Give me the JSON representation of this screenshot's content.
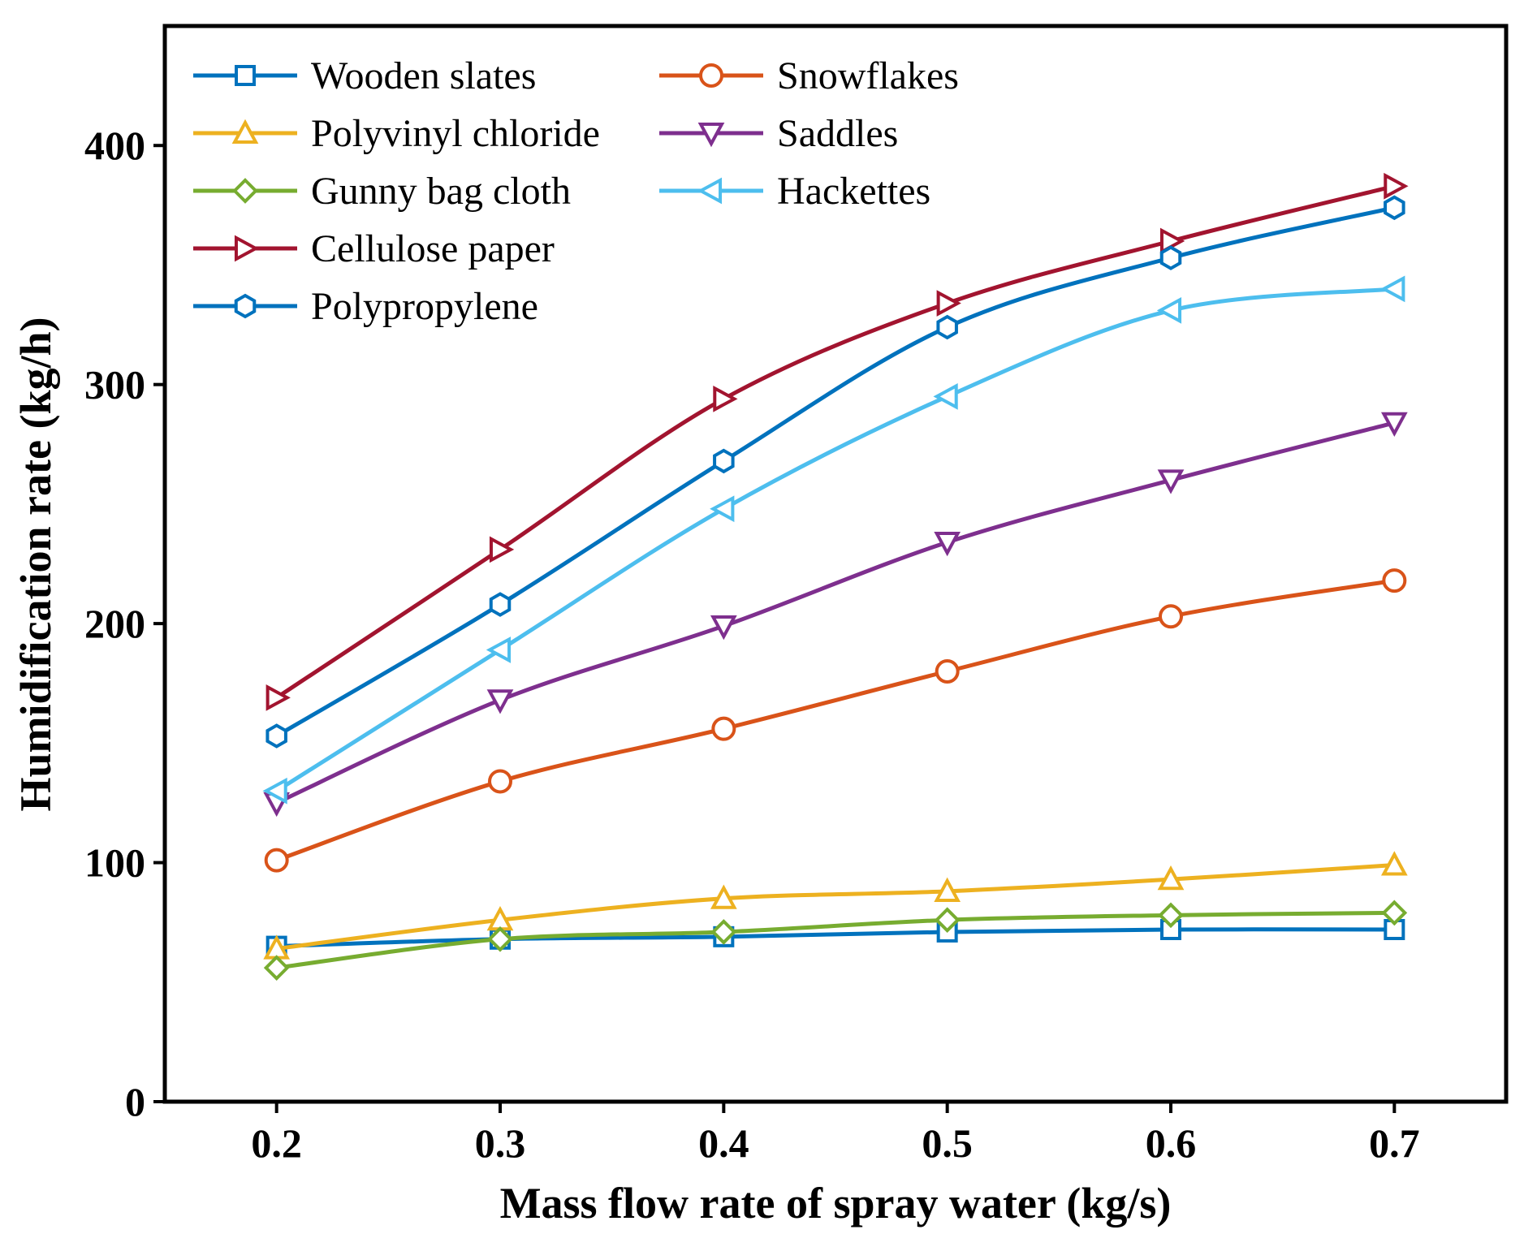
{
  "chart_data": {
    "type": "line",
    "title": "",
    "xlabel": "Mass flow rate of spray water (kg/s)",
    "ylabel": "Humidification rate (kg/h)",
    "xlim": [
      0.15,
      0.75
    ],
    "ylim": [
      0,
      450
    ],
    "x": [
      0.2,
      0.3,
      0.4,
      0.5,
      0.6,
      0.7
    ],
    "x_tick_labels": [
      "0.2",
      "0.3",
      "0.4",
      "0.5",
      "0.6",
      "0.7"
    ],
    "y_ticks": [
      0,
      100,
      200,
      300,
      400
    ],
    "y_tick_labels": [
      "0",
      "100",
      "200",
      "300",
      "400"
    ],
    "grid": false,
    "legend_position": "top-left",
    "series": [
      {
        "name": "Wooden slates",
        "marker": "square",
        "color": "#0072BD",
        "values": [
          65,
          68,
          69,
          71,
          72,
          72
        ]
      },
      {
        "name": "Snowflakes",
        "marker": "circle",
        "color": "#D95319",
        "values": [
          101,
          134,
          156,
          180,
          203,
          218
        ]
      },
      {
        "name": "Polyvinyl chloride",
        "marker": "triangle-up",
        "color": "#EDB120",
        "values": [
          64,
          76,
          85,
          88,
          93,
          99
        ]
      },
      {
        "name": "Saddles",
        "marker": "triangle-down",
        "color": "#7E2F8E",
        "values": [
          125,
          168,
          199,
          234,
          260,
          284
        ]
      },
      {
        "name": "Gunny bag cloth",
        "marker": "diamond",
        "color": "#77AC30",
        "values": [
          56,
          68,
          71,
          76,
          78,
          79
        ]
      },
      {
        "name": "Hackettes",
        "marker": "triangle-left",
        "color": "#4DBEEE",
        "values": [
          130,
          189,
          248,
          295,
          331,
          340
        ]
      },
      {
        "name": "Cellulose paper",
        "marker": "triangle-right",
        "color": "#A2142F",
        "values": [
          169,
          231,
          294,
          334,
          360,
          383
        ]
      },
      {
        "name": "Polypropylene",
        "marker": "hexagon",
        "color": "#0072BD",
        "values": [
          153,
          208,
          268,
          324,
          353,
          374
        ]
      }
    ]
  }
}
